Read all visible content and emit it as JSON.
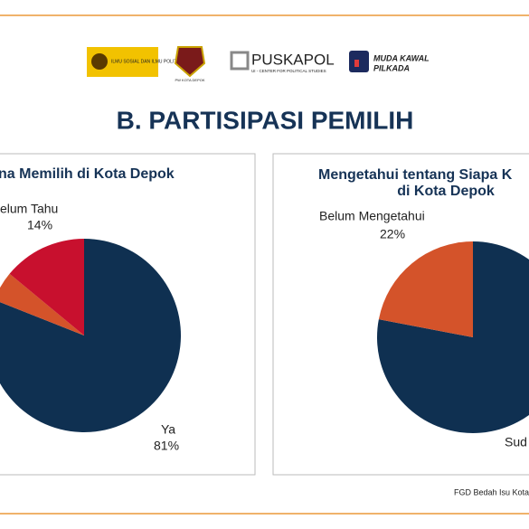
{
  "slide_title": "B. PARTISIPASI PEMILIH",
  "logos": {
    "fisip": "ILMU SOSIAL DAN ILMU POLITIK",
    "pw": "PW KOTA DEPOK",
    "puskapol": "PUSKAPOL",
    "puskapol_sub": "UI - CENTER FOR POLITICAL STUDIES",
    "mkp_1": "MUDA KAWAL",
    "mkp_2": "PILKADA"
  },
  "footer": "FGD Bedah Isu Kota",
  "chart_data": [
    {
      "type": "pie",
      "title": [
        "na Memilih di Kota Depok"
      ],
      "categories": [
        "Ya",
        null,
        "elum Tahu"
      ],
      "values": [
        81,
        5,
        14
      ],
      "value_labels": [
        "81%",
        null,
        "14%"
      ],
      "colors": [
        "#0f3051",
        "#d4532a",
        "#c8102e"
      ]
    },
    {
      "type": "pie",
      "title": [
        "Mengetahui tentang Siapa K",
        "di Kota Depok"
      ],
      "categories": [
        "Sud",
        "Belum Mengetahui"
      ],
      "values": [
        78,
        22
      ],
      "value_labels": [
        null,
        "22%"
      ],
      "colors": [
        "#0f3051",
        "#d4532a"
      ]
    }
  ]
}
